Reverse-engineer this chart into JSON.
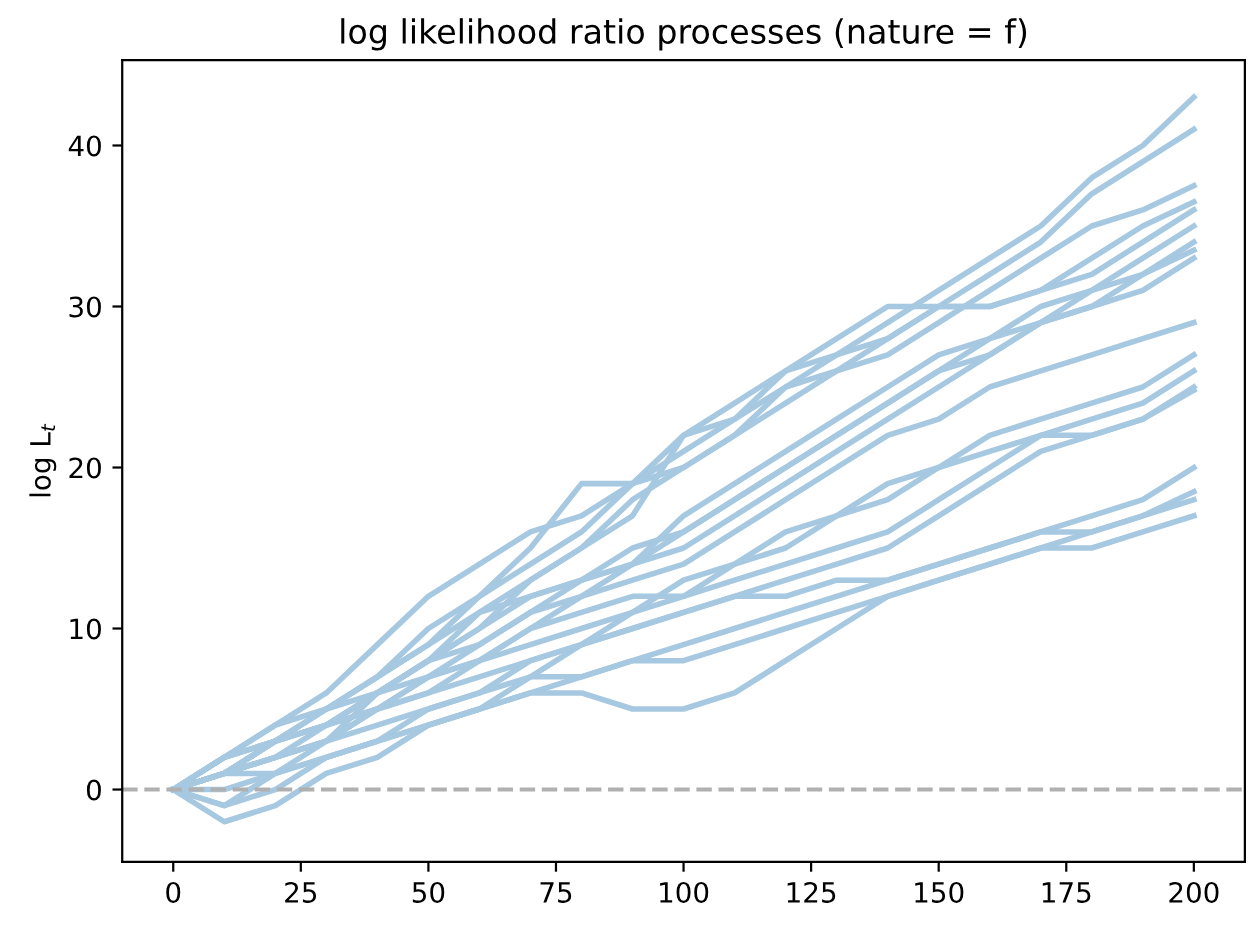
{
  "chart_data": {
    "type": "line",
    "title": "log likelihood ratio processes (nature = f)",
    "ylabel": "log L$_{t}$",
    "x": [
      0,
      10,
      20,
      30,
      40,
      50,
      60,
      70,
      80,
      90,
      100,
      110,
      120,
      130,
      140,
      150,
      160,
      170,
      180,
      190,
      200
    ],
    "xlim": [
      -10,
      210
    ],
    "xticks": [
      0,
      25,
      50,
      75,
      100,
      125,
      150,
      175,
      200
    ],
    "ylim": [
      -4.5,
      45.3
    ],
    "yticks": [
      0,
      10,
      20,
      30,
      40
    ],
    "grid": false,
    "legend": false,
    "marker": "none",
    "line_style": "solid",
    "ref_lines": [
      {
        "axis": "y",
        "value": 0,
        "color": "#b0b0b0",
        "line_style": "dashed"
      }
    ],
    "series": [
      {
        "color": "#a6c8e1",
        "values": [
          0,
          2,
          4,
          6,
          9,
          12,
          14,
          16,
          17,
          19,
          22,
          24,
          26,
          27,
          29,
          31,
          33,
          35,
          38,
          40,
          43
        ]
      },
      {
        "color": "#a6c8e1",
        "values": [
          0,
          1,
          3,
          5,
          7,
          10,
          12,
          14,
          16,
          19,
          21,
          23,
          25,
          26,
          28,
          30,
          32,
          34,
          37,
          39,
          41
        ]
      },
      {
        "color": "#a6c8e1",
        "values": [
          0,
          1,
          2,
          4,
          6,
          8,
          11,
          13,
          15,
          18,
          20,
          22,
          24,
          26,
          27,
          29,
          31,
          33,
          35,
          36,
          37.5
        ]
      },
      {
        "color": "#a6c8e1",
        "values": [
          0,
          2,
          4,
          5,
          7,
          9,
          12,
          15,
          19,
          19,
          20,
          22,
          25,
          27,
          28,
          30,
          30,
          31,
          33,
          35,
          36.5
        ]
      },
      {
        "color": "#a6c8e1",
        "values": [
          0,
          -1,
          1,
          3,
          6,
          8,
          10,
          13,
          15,
          17,
          22,
          23,
          26,
          28,
          30,
          30,
          30,
          31,
          32,
          34,
          36
        ]
      },
      {
        "color": "#a6c8e1",
        "values": [
          0,
          1,
          3,
          4,
          6,
          8,
          10,
          12,
          13,
          15,
          16,
          18,
          20,
          22,
          24,
          26,
          28,
          30,
          31,
          33,
          35
        ]
      },
      {
        "color": "#a6c8e1",
        "values": [
          0,
          2,
          3,
          5,
          7,
          9,
          11,
          12,
          13,
          14,
          15,
          17,
          19,
          21,
          23,
          25,
          27,
          29,
          31,
          32,
          34
        ]
      },
      {
        "color": "#a6c8e1",
        "values": [
          0,
          1,
          2,
          3,
          5,
          7,
          9,
          11,
          13,
          14,
          16,
          18,
          20,
          22,
          24,
          26,
          27,
          29,
          30,
          32,
          33.5
        ]
      },
      {
        "color": "#a6c8e1",
        "values": [
          0,
          1,
          3,
          4,
          5,
          7,
          8,
          10,
          12,
          14,
          17,
          19,
          21,
          23,
          25,
          27,
          28,
          29,
          30,
          31,
          33
        ]
      },
      {
        "color": "#a6c8e1",
        "values": [
          0,
          2,
          3,
          5,
          6,
          8,
          9,
          11,
          12,
          13,
          14,
          16,
          18,
          20,
          22,
          23,
          25,
          26,
          27,
          28,
          29
        ]
      },
      {
        "color": "#a6c8e1",
        "values": [
          0,
          -1,
          0,
          2,
          3,
          5,
          6,
          8,
          9,
          11,
          12,
          14,
          16,
          17,
          19,
          20,
          22,
          23,
          24,
          25,
          27
        ]
      },
      {
        "color": "#a6c8e1",
        "values": [
          0,
          1,
          2,
          3,
          5,
          6,
          8,
          9,
          10,
          11,
          13,
          14,
          15,
          17,
          18,
          20,
          21,
          22,
          23,
          24,
          26
        ]
      },
      {
        "color": "#a6c8e1",
        "values": [
          0,
          -2,
          -1,
          1,
          2,
          4,
          5,
          7,
          9,
          10,
          11,
          12,
          13,
          14,
          15,
          17,
          19,
          21,
          22,
          23,
          25
        ]
      },
      {
        "color": "#a6c8e1",
        "values": [
          0,
          1,
          3,
          4,
          6,
          7,
          8,
          10,
          11,
          12,
          12,
          13,
          14,
          15,
          16,
          18,
          20,
          22,
          22,
          23,
          24.8
        ]
      },
      {
        "color": "#a6c8e1",
        "values": [
          0,
          1,
          2,
          3,
          4,
          5,
          6,
          7,
          7,
          8,
          9,
          10,
          11,
          12,
          13,
          14,
          15,
          16,
          17,
          18,
          20
        ]
      },
      {
        "color": "#a6c8e1",
        "values": [
          0,
          0,
          1,
          2,
          3,
          4,
          5,
          6,
          6,
          5,
          5,
          6,
          8,
          10,
          12,
          13,
          14,
          15,
          16,
          17,
          18.5
        ]
      },
      {
        "color": "#a6c8e1",
        "values": [
          0,
          1,
          1,
          2,
          3,
          4,
          5,
          6,
          7,
          8,
          8,
          9,
          10,
          11,
          12,
          13,
          14,
          15,
          15,
          16,
          17
        ]
      },
      {
        "color": "#a6c8e1",
        "values": [
          0,
          2,
          3,
          4,
          5,
          6,
          7,
          8,
          9,
          10,
          11,
          12,
          12,
          13,
          13,
          14,
          15,
          16,
          16,
          17,
          18
        ]
      }
    ]
  }
}
